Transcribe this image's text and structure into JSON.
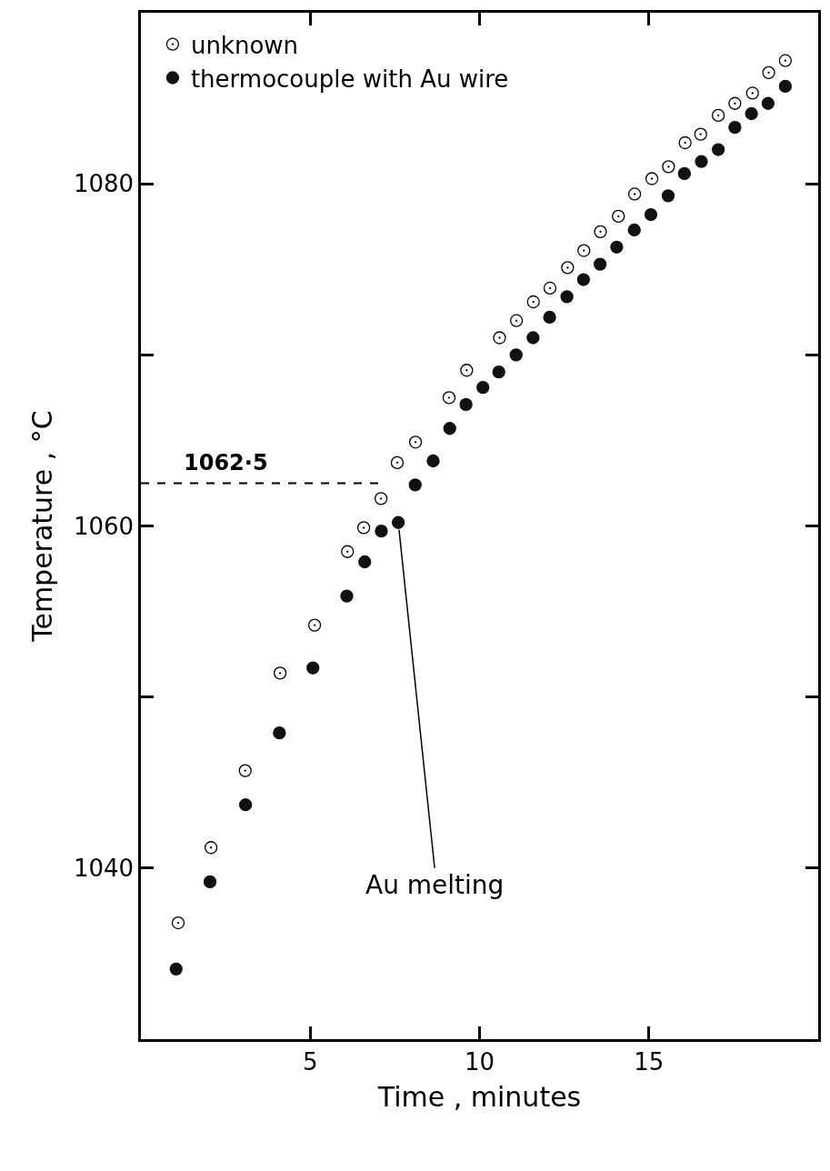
{
  "chart_data": {
    "type": "scatter",
    "xlabel": "Time , minutes",
    "ylabel": "Temperature , °C",
    "xlim": [
      0,
      20
    ],
    "xticks": [
      5,
      10,
      15
    ],
    "ylim": [
      1030,
      1090
    ],
    "yticks": [
      1040,
      {
        "value": 1050,
        "label": null
      },
      1060,
      {
        "value": 1070,
        "label": null
      },
      1080
    ],
    "legend": "top left",
    "series": [
      {
        "name": "unknown",
        "color": "#000000",
        "marker": "circle-open-dot",
        "x": [
          1.1,
          2.07,
          3.08,
          4.11,
          5.13,
          6.1,
          6.58,
          7.09,
          7.57,
          8.11,
          9.1,
          9.62,
          10.59,
          11.09,
          11.59,
          12.08,
          12.6,
          13.08,
          13.57,
          14.1,
          14.58,
          15.09,
          15.58,
          16.07,
          16.53,
          17.05,
          17.54,
          18.06,
          18.54,
          19.03
        ],
        "values": [
          1036.8,
          1041.2,
          1045.7,
          1051.4,
          1054.2,
          1058.5,
          1059.9,
          1061.6,
          1063.7,
          1064.9,
          1067.5,
          1069.1,
          1071.0,
          1072.0,
          1073.1,
          1073.9,
          1075.1,
          1076.1,
          1077.2,
          1078.1,
          1079.4,
          1080.3,
          1081.0,
          1082.4,
          1082.9,
          1084.0,
          1084.7,
          1085.3,
          1086.5,
          1087.2
        ]
      },
      {
        "name": "thermocouple with Au wire",
        "color": "#111111",
        "marker": "circle",
        "x": [
          1.04,
          2.04,
          3.09,
          4.09,
          5.08,
          6.08,
          6.61,
          7.1,
          7.6,
          8.1,
          8.63,
          9.12,
          9.6,
          10.1,
          10.57,
          11.08,
          11.58,
          12.07,
          12.58,
          13.07,
          13.56,
          14.05,
          14.57,
          15.06,
          15.57,
          16.05,
          16.55,
          17.05,
          17.54,
          18.03,
          18.52,
          19.03
        ],
        "values": [
          1034.1,
          1039.2,
          1043.7,
          1047.9,
          1051.7,
          1055.9,
          1057.9,
          1059.7,
          1060.2,
          1062.4,
          1063.8,
          1065.7,
          1067.1,
          1068.1,
          1069.0,
          1070.0,
          1071.0,
          1072.2,
          1073.4,
          1074.4,
          1075.3,
          1076.3,
          1077.3,
          1078.2,
          1079.3,
          1080.6,
          1081.3,
          1082.0,
          1083.3,
          1084.1,
          1084.7,
          1085.7
        ]
      }
    ],
    "ref_lines": [
      {
        "axis": "y",
        "value": 1062.5,
        "label": "1062·5",
        "line_style": "dashed",
        "color": "#000000"
      }
    ],
    "annotations": [
      {
        "text": "Au melting",
        "x": 7.6,
        "y": 1060.2
      }
    ]
  }
}
